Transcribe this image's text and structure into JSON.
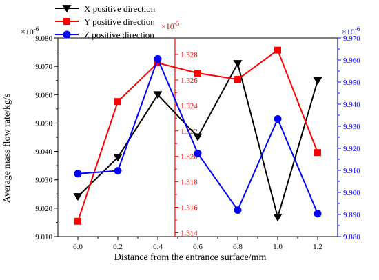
{
  "chart_data": {
    "type": "line",
    "xlabel": "Distance from the entrance surface/mm",
    "ylabel": "Average mass flow rate/kg/s",
    "x": [
      0.0,
      0.2,
      0.4,
      0.6,
      0.8,
      1.0,
      1.2
    ],
    "x_tick_labels": [
      "0.0",
      "0.2",
      "0.4",
      "0.6",
      "0.8",
      "1.0",
      "1.2"
    ],
    "xlim": [
      -0.1,
      1.3
    ],
    "axes": [
      {
        "id": "left",
        "multiplier": "×10",
        "exponent": "-6",
        "ylim": [
          9.01,
          9.08
        ],
        "ticks": [
          "9.010",
          "9.020",
          "9.030",
          "9.040",
          "9.050",
          "9.060",
          "9.070",
          "9.080"
        ],
        "tick_values": [
          9.01,
          9.02,
          9.03,
          9.04,
          9.05,
          9.06,
          9.07,
          9.08
        ],
        "color": "#000000"
      },
      {
        "id": "middle",
        "multiplier": "×10",
        "exponent": "-5",
        "ylim": [
          1.3137,
          1.3293
        ],
        "ticks": [
          "1.314",
          "1.316",
          "1.318",
          "1.320",
          "1.322",
          "1.324",
          "1.326",
          "1.328"
        ],
        "tick_values": [
          1.314,
          1.316,
          1.318,
          1.32,
          1.322,
          1.324,
          1.326,
          1.328
        ],
        "color": "#ff0000"
      },
      {
        "id": "right",
        "multiplier": "×10",
        "exponent": "-6",
        "ylim": [
          9.88,
          9.97
        ],
        "ticks": [
          "9.880",
          "9.890",
          "9.900",
          "9.910",
          "9.920",
          "9.930",
          "9.940",
          "9.950",
          "9.960",
          "9.970"
        ],
        "tick_values": [
          9.88,
          9.89,
          9.9,
          9.91,
          9.92,
          9.93,
          9.94,
          9.95,
          9.96,
          9.97
        ],
        "color": "#0000ff"
      }
    ],
    "series": [
      {
        "name": "X positive direction",
        "axis": "left",
        "color": "#000000",
        "marker": "triangle-down",
        "values": [
          9.0241,
          9.0379,
          9.06,
          9.0451,
          9.071,
          9.0168,
          9.065
        ]
      },
      {
        "name": "Y positive direction",
        "axis": "left",
        "color": "#ff0000",
        "marker": "square",
        "values": [
          9.0154,
          9.0576,
          9.0712,
          9.0676,
          9.0654,
          9.0757,
          9.0396
        ]
      },
      {
        "name": "Z positive direction",
        "axis": "right",
        "color": "#0000ff",
        "marker": "circle",
        "values": [
          9.9085,
          9.9098,
          9.9605,
          9.9177,
          9.892,
          9.9333,
          9.8904
        ]
      }
    ],
    "legend_position": "top-left, outside plot"
  }
}
